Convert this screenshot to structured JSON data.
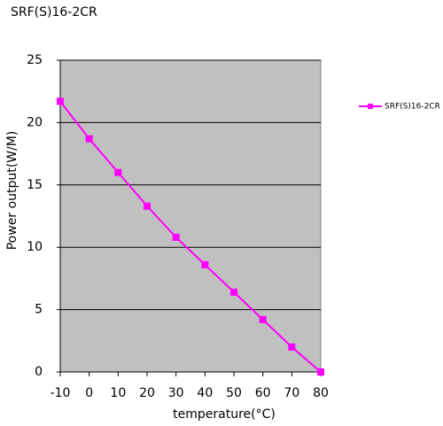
{
  "chart_data": {
    "type": "line",
    "title": "SRF(S)16-2CR",
    "x_label": "temperature(°C)",
    "y_label": "Power output(W/M)",
    "x": [
      -10,
      0,
      10,
      20,
      30,
      40,
      50,
      60,
      70,
      80
    ],
    "series": [
      {
        "name": "SRF(S)16-2CR",
        "color": "#ff00ff",
        "values": [
          21.7,
          18.7,
          16.0,
          13.3,
          10.8,
          8.6,
          6.4,
          4.2,
          2.0,
          0
        ]
      }
    ],
    "xlim": [
      -10,
      80
    ],
    "xticks": [
      -10,
      0,
      10,
      20,
      30,
      40,
      50,
      60,
      70,
      80
    ],
    "ylim": [
      0,
      25
    ],
    "yticks": [
      0,
      5,
      10,
      15,
      20,
      25
    ],
    "grid": true,
    "legend": "right",
    "plot_background": "#c0c0c0"
  }
}
